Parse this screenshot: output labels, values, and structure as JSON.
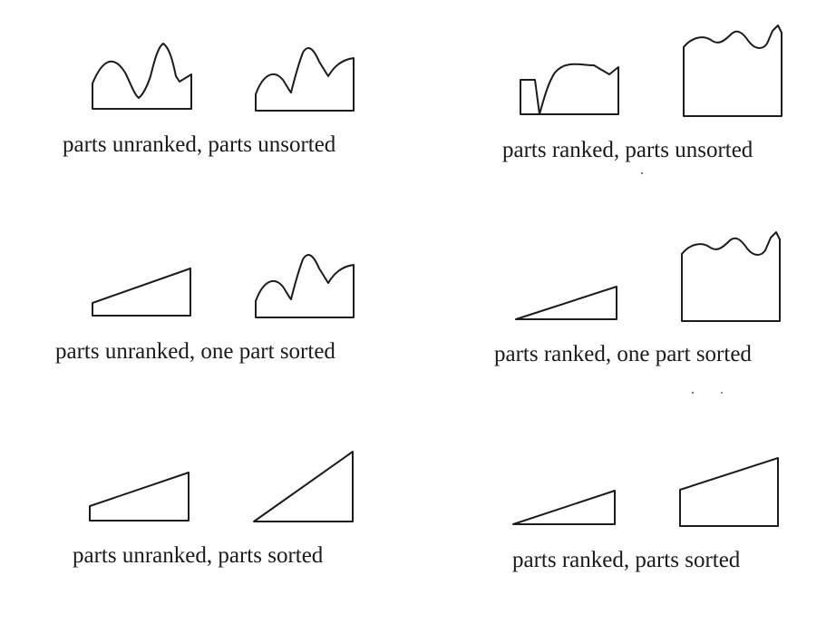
{
  "captions": {
    "unranked_unsorted": "parts unranked, parts unsorted",
    "ranked_unsorted": "parts ranked, parts unsorted",
    "unranked_one_sorted": "parts unranked, one part sorted",
    "ranked_one_sorted": "parts ranked, one part sorted",
    "unranked_sorted": "parts unranked, parts sorted",
    "ranked_sorted": "parts ranked, parts sorted"
  }
}
